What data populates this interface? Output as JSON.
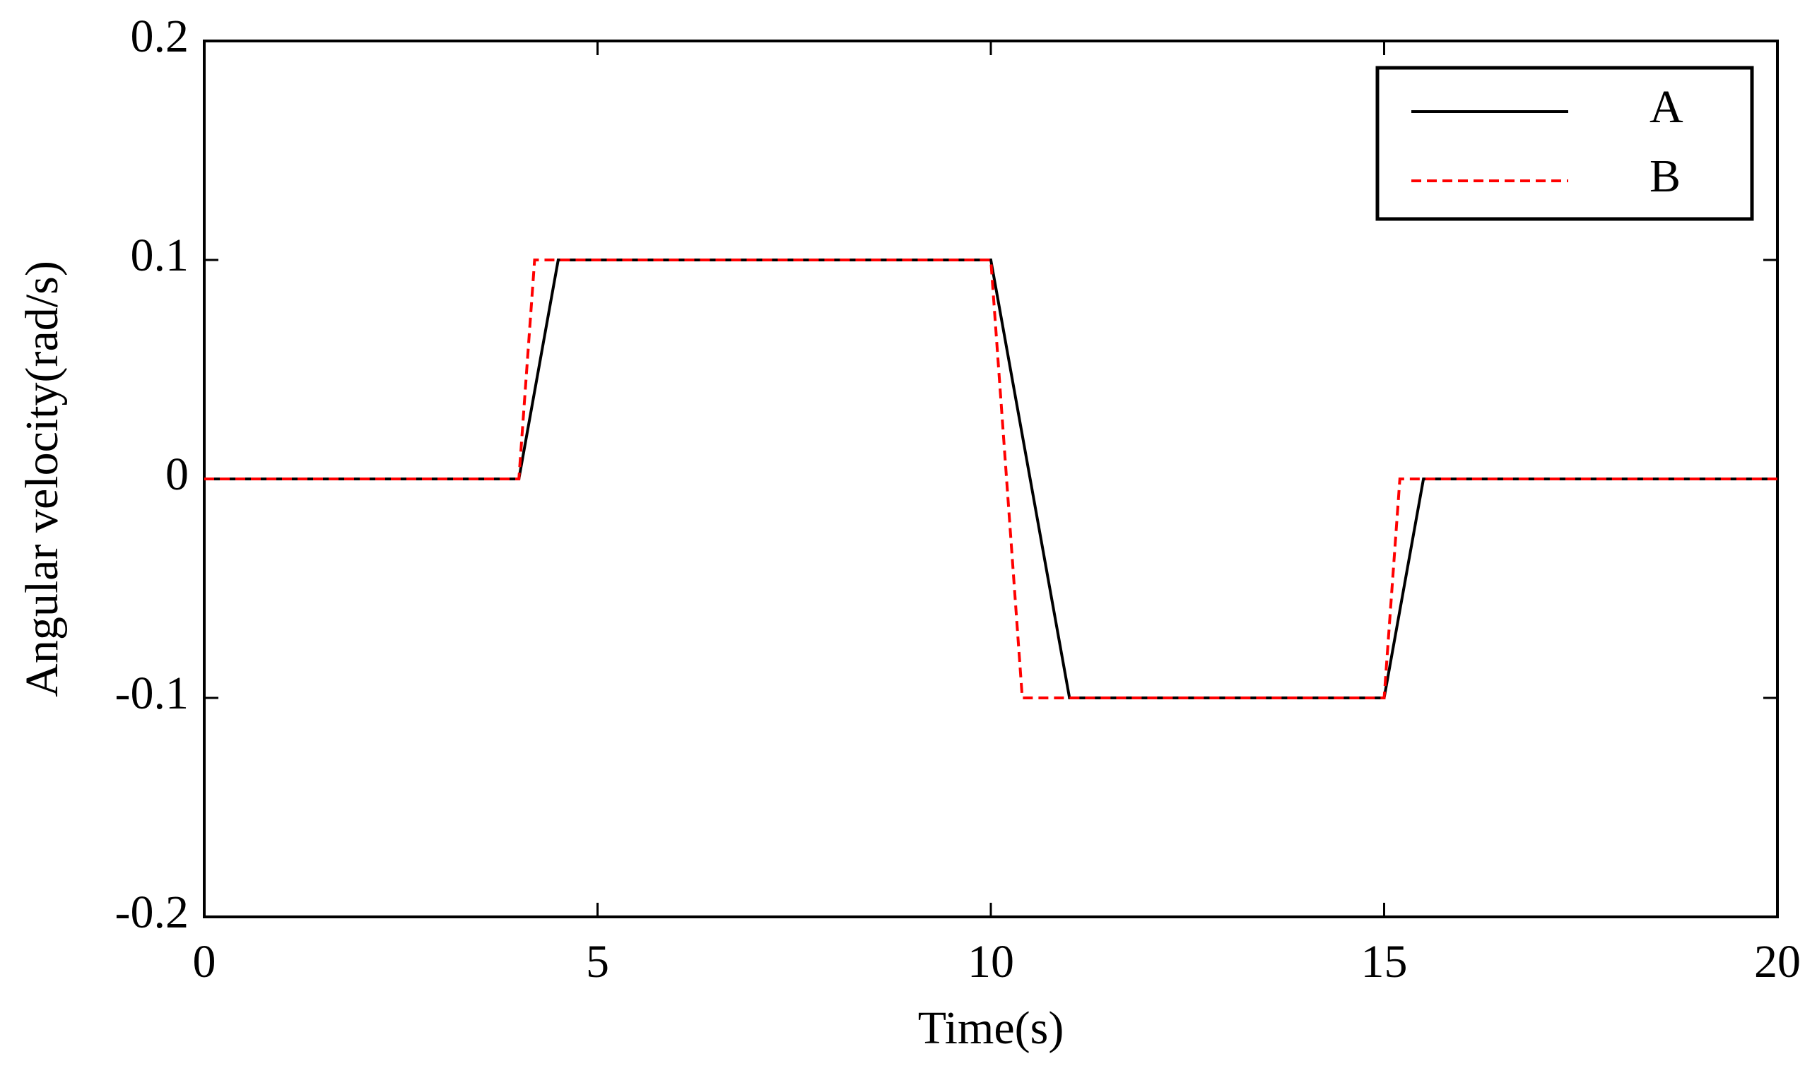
{
  "chart_data": {
    "type": "line",
    "xlabel": "Time(s)",
    "ylabel": "Angular velocity(rad/s)",
    "series": [
      {
        "name": "A",
        "color": "#000000",
        "dash": "solid",
        "x": [
          0,
          4,
          4.5,
          10,
          11,
          15,
          15.5,
          20
        ],
        "values": [
          0,
          0,
          0.1,
          0.1,
          -0.1,
          -0.1,
          0,
          0
        ]
      },
      {
        "name": "B",
        "color": "#ff0000",
        "dash": "dashed",
        "x": [
          0,
          4,
          4.2,
          10,
          10.4,
          15,
          15.2,
          20
        ],
        "values": [
          0,
          0,
          0.1,
          0.1,
          -0.1,
          -0.1,
          0,
          0
        ]
      }
    ],
    "xlim": [
      0,
      20
    ],
    "xticks": [
      0,
      5,
      10,
      15,
      20
    ],
    "ylim": [
      -0.2,
      0.2
    ],
    "yticks": [
      -0.2,
      -0.1,
      0,
      0.1,
      0.2
    ],
    "grid": false,
    "legend": "upper right"
  }
}
